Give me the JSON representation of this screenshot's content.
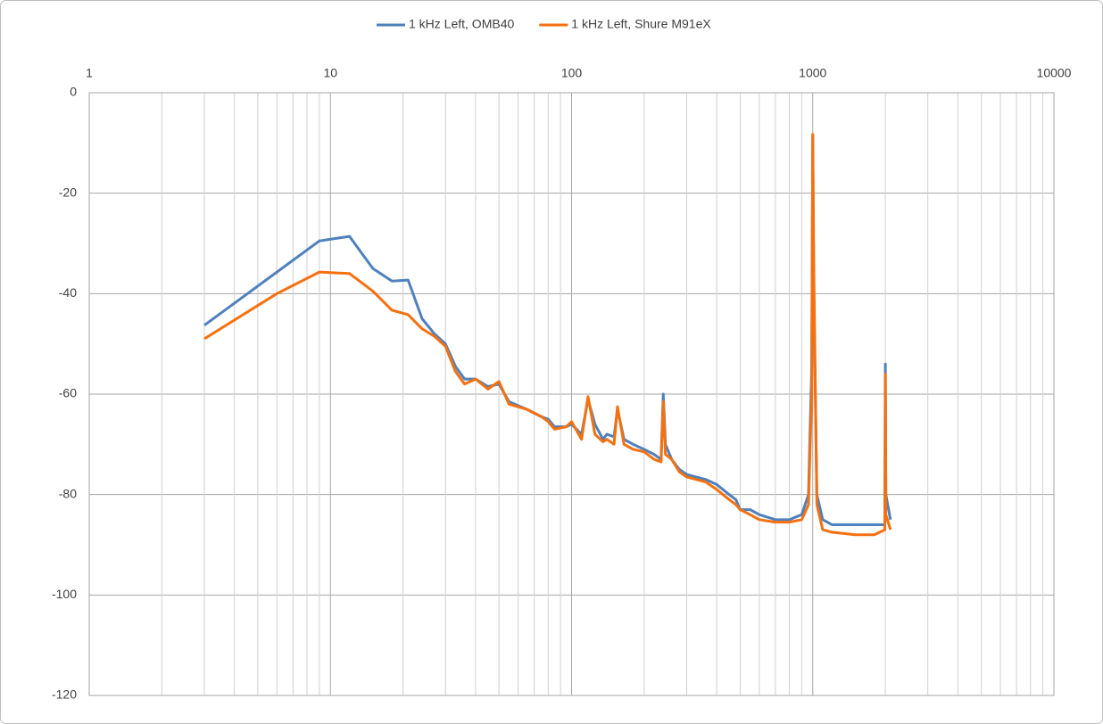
{
  "chart_data": {
    "type": "line",
    "xscale": "log",
    "grid": true,
    "legend": "top",
    "xlim": [
      1,
      10000
    ],
    "xticks": [
      1,
      10,
      100,
      1000,
      10000
    ],
    "ylim": [
      -120,
      0
    ],
    "yticks": [
      0,
      -20,
      -40,
      -60,
      -80,
      -100,
      -120
    ],
    "x": [
      3,
      6,
      9,
      12,
      15,
      18,
      21,
      24,
      27,
      30,
      33,
      36,
      40,
      45,
      50,
      55,
      65,
      75,
      80,
      85,
      95,
      100,
      110,
      117,
      125,
      135,
      140,
      150,
      155,
      165,
      180,
      200,
      220,
      235,
      240,
      245,
      260,
      280,
      300,
      360,
      400,
      450,
      480,
      500,
      550,
      600,
      700,
      800,
      900,
      960,
      990,
      1000,
      1010,
      1040,
      1100,
      1200,
      1500,
      1800,
      1990,
      2000,
      2010,
      2100
    ],
    "series": [
      {
        "name": "1 kHz Left, OMB40",
        "color": "#4f81bd",
        "values": [
          -46.3,
          -35.7,
          -29.5,
          -28.6,
          -35,
          -37.5,
          -37.3,
          -45,
          -48,
          -50,
          -54.5,
          -57,
          -57,
          -58.5,
          -58,
          -61.5,
          -63,
          -64.5,
          -65,
          -66.5,
          -66.5,
          -66,
          -68,
          -61,
          -66,
          -69,
          -68,
          -68.5,
          -63,
          -69,
          -70,
          -71,
          -72,
          -73,
          -60,
          -70,
          -73,
          -75,
          -76,
          -77,
          -78,
          -80,
          -81,
          -83,
          -83,
          -84,
          -85,
          -85,
          -84,
          -80,
          -55,
          -8.5,
          -40,
          -80,
          -85,
          -86,
          -86,
          -86,
          -86,
          -54,
          -80,
          -85
        ]
      },
      {
        "name": "1 kHz Left, Shure M91eX",
        "color": "#f5700f",
        "values": [
          -49,
          -40,
          -35.7,
          -36,
          -39.5,
          -43.3,
          -44.2,
          -47,
          -48.5,
          -50.5,
          -55.5,
          -58,
          -57,
          -59,
          -57.5,
          -62,
          -63,
          -64.5,
          -65.5,
          -67,
          -66.5,
          -65.5,
          -69,
          -60.5,
          -68,
          -69.5,
          -69,
          -70,
          -62.5,
          -70,
          -71,
          -71.5,
          -73,
          -73.5,
          -61.5,
          -72,
          -73,
          -75.5,
          -76.5,
          -77.5,
          -79,
          -81,
          -82,
          -83,
          -84,
          -85,
          -85.5,
          -85.5,
          -85,
          -82,
          -60,
          -8.3,
          -35,
          -82,
          -87,
          -87.5,
          -88,
          -88,
          -87,
          -56,
          -84,
          -87
        ]
      }
    ]
  }
}
